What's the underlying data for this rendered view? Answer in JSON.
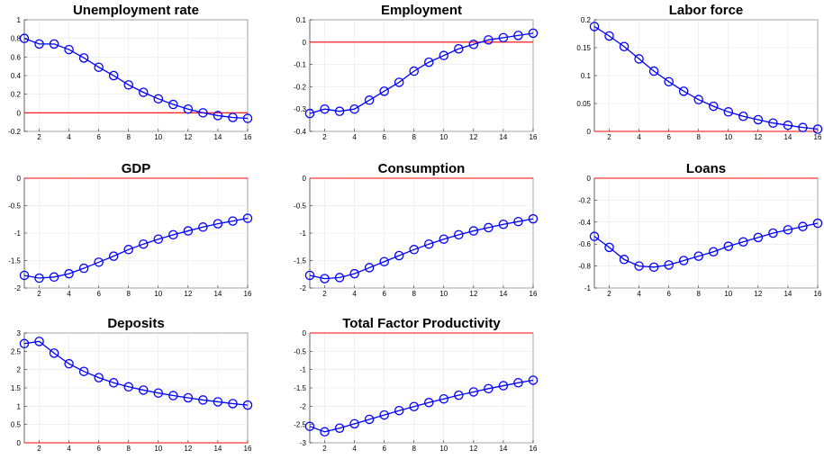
{
  "colors": {
    "series": "#0000ff",
    "zero_line": "#ff0000",
    "grid": "#e3e3e3",
    "axes": "#000000"
  },
  "chart_data": [
    {
      "type": "line",
      "title": "Unemployment rate",
      "x": [
        1,
        2,
        3,
        4,
        5,
        6,
        7,
        8,
        9,
        10,
        11,
        12,
        13,
        14,
        15,
        16
      ],
      "values": [
        0.8,
        0.74,
        0.74,
        0.68,
        0.59,
        0.49,
        0.4,
        0.3,
        0.22,
        0.15,
        0.09,
        0.04,
        0.0,
        -0.03,
        -0.05,
        -0.06
      ],
      "xlim": [
        1,
        16
      ],
      "ylim": [
        -0.2,
        1
      ],
      "xticks": [
        2,
        4,
        6,
        8,
        10,
        12,
        14,
        16
      ],
      "yticks": [
        -0.2,
        0,
        0.2,
        0.4,
        0.6,
        0.8,
        1
      ],
      "ytick_labels": [
        "-0.2",
        "0",
        "0.2",
        "0.4",
        "0.6",
        "0.8",
        "1"
      ],
      "reference_line": 0,
      "grid": true
    },
    {
      "type": "line",
      "title": "Employment",
      "x": [
        1,
        2,
        3,
        4,
        5,
        6,
        7,
        8,
        9,
        10,
        11,
        12,
        13,
        14,
        15,
        16
      ],
      "values": [
        -0.32,
        -0.3,
        -0.31,
        -0.3,
        -0.26,
        -0.22,
        -0.18,
        -0.13,
        -0.09,
        -0.06,
        -0.03,
        -0.01,
        0.01,
        0.02,
        0.03,
        0.04
      ],
      "xlim": [
        1,
        16
      ],
      "ylim": [
        -0.4,
        0.1
      ],
      "xticks": [
        2,
        4,
        6,
        8,
        10,
        12,
        14,
        16
      ],
      "yticks": [
        -0.4,
        -0.3,
        -0.2,
        -0.1,
        0,
        0.1
      ],
      "ytick_labels": [
        "-0.4",
        "-0.3",
        "-0.2",
        "-0.1",
        "0",
        "0.1"
      ],
      "reference_line": 0,
      "grid": true
    },
    {
      "type": "line",
      "title": "Labor force",
      "x": [
        1,
        2,
        3,
        4,
        5,
        6,
        7,
        8,
        9,
        10,
        11,
        12,
        13,
        14,
        15,
        16
      ],
      "values": [
        0.188,
        0.171,
        0.152,
        0.13,
        0.108,
        0.089,
        0.072,
        0.057,
        0.045,
        0.035,
        0.027,
        0.021,
        0.015,
        0.011,
        0.007,
        0.004
      ],
      "xlim": [
        1,
        16
      ],
      "ylim": [
        0,
        0.2
      ],
      "xticks": [
        2,
        4,
        6,
        8,
        10,
        12,
        14,
        16
      ],
      "yticks": [
        0,
        0.05,
        0.1,
        0.15,
        0.2
      ],
      "ytick_labels": [
        "0",
        "0.05",
        "0.1",
        "0.15",
        "0.2"
      ],
      "reference_line": 0,
      "grid": true
    },
    {
      "type": "line",
      "title": "GDP",
      "x": [
        1,
        2,
        3,
        4,
        5,
        6,
        7,
        8,
        9,
        10,
        11,
        12,
        13,
        14,
        15,
        16
      ],
      "values": [
        -1.77,
        -1.82,
        -1.8,
        -1.74,
        -1.64,
        -1.53,
        -1.42,
        -1.3,
        -1.2,
        -1.11,
        -1.03,
        -0.96,
        -0.89,
        -0.83,
        -0.78,
        -0.73
      ],
      "xlim": [
        1,
        16
      ],
      "ylim": [
        -2,
        0
      ],
      "xticks": [
        2,
        4,
        6,
        8,
        10,
        12,
        14,
        16
      ],
      "yticks": [
        -2,
        -1.5,
        -1,
        -0.5,
        0
      ],
      "ytick_labels": [
        "-2",
        "-1.5",
        "-1",
        "-0.5",
        "0"
      ],
      "reference_line": 0,
      "grid": true
    },
    {
      "type": "line",
      "title": "Consumption",
      "x": [
        1,
        2,
        3,
        4,
        5,
        6,
        7,
        8,
        9,
        10,
        11,
        12,
        13,
        14,
        15,
        16
      ],
      "values": [
        -1.77,
        -1.83,
        -1.81,
        -1.74,
        -1.63,
        -1.52,
        -1.41,
        -1.3,
        -1.2,
        -1.11,
        -1.03,
        -0.96,
        -0.9,
        -0.84,
        -0.79,
        -0.74
      ],
      "xlim": [
        1,
        16
      ],
      "ylim": [
        -2,
        0
      ],
      "xticks": [
        2,
        4,
        6,
        8,
        10,
        12,
        14,
        16
      ],
      "yticks": [
        -2,
        -1.5,
        -1,
        -0.5,
        0
      ],
      "ytick_labels": [
        "-2",
        "-1.5",
        "-1",
        "-0.5",
        "0"
      ],
      "reference_line": 0,
      "grid": true
    },
    {
      "type": "line",
      "title": "Loans",
      "x": [
        1,
        2,
        3,
        4,
        5,
        6,
        7,
        8,
        9,
        10,
        11,
        12,
        13,
        14,
        15,
        16
      ],
      "values": [
        -0.53,
        -0.63,
        -0.74,
        -0.8,
        -0.81,
        -0.79,
        -0.75,
        -0.71,
        -0.67,
        -0.62,
        -0.58,
        -0.54,
        -0.5,
        -0.47,
        -0.44,
        -0.41
      ],
      "xlim": [
        1,
        16
      ],
      "ylim": [
        -1,
        0
      ],
      "xticks": [
        2,
        4,
        6,
        8,
        10,
        12,
        14,
        16
      ],
      "yticks": [
        -1,
        -0.8,
        -0.6,
        -0.4,
        -0.2,
        0
      ],
      "ytick_labels": [
        "-1",
        "-0.8",
        "-0.6",
        "-0.4",
        "-0.2",
        "0"
      ],
      "reference_line": 0,
      "grid": true
    },
    {
      "type": "line",
      "title": "Deposits",
      "x": [
        1,
        2,
        3,
        4,
        5,
        6,
        7,
        8,
        9,
        10,
        11,
        12,
        13,
        14,
        15,
        16
      ],
      "values": [
        2.71,
        2.77,
        2.45,
        2.16,
        1.95,
        1.78,
        1.64,
        1.53,
        1.44,
        1.36,
        1.29,
        1.23,
        1.17,
        1.12,
        1.07,
        1.03
      ],
      "xlim": [
        1,
        16
      ],
      "ylim": [
        0,
        3
      ],
      "xticks": [
        2,
        4,
        6,
        8,
        10,
        12,
        14,
        16
      ],
      "yticks": [
        0,
        0.5,
        1,
        1.5,
        2,
        2.5,
        3
      ],
      "ytick_labels": [
        "0",
        "0.5",
        "1",
        "1.5",
        "2",
        "2.5",
        "3"
      ],
      "reference_line": 0,
      "grid": true
    },
    {
      "type": "line",
      "title": "Total Factor Productivity",
      "x": [
        1,
        2,
        3,
        4,
        5,
        6,
        7,
        8,
        9,
        10,
        11,
        12,
        13,
        14,
        15,
        16
      ],
      "values": [
        -2.55,
        -2.7,
        -2.6,
        -2.48,
        -2.36,
        -2.24,
        -2.12,
        -2.01,
        -1.9,
        -1.8,
        -1.7,
        -1.61,
        -1.52,
        -1.44,
        -1.36,
        -1.29
      ],
      "xlim": [
        1,
        16
      ],
      "ylim": [
        -3,
        0
      ],
      "xticks": [
        2,
        4,
        6,
        8,
        10,
        12,
        14,
        16
      ],
      "yticks": [
        -3,
        -2.5,
        -2,
        -1.5,
        -1,
        -0.5,
        0
      ],
      "ytick_labels": [
        "-3",
        "-2.5",
        "-2",
        "-1.5",
        "-1",
        "-0.5",
        "0"
      ],
      "reference_line": 0,
      "grid": true
    }
  ]
}
